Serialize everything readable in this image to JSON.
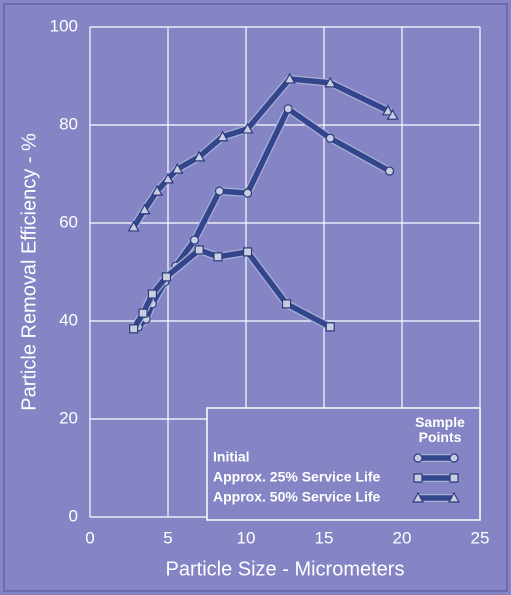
{
  "chart_data": {
    "type": "line",
    "xlabel": "Particle Size - Micrometers",
    "ylabel": "Particle Removal Efficiency - %",
    "legend_title": "Sample Points",
    "xlim": [
      0,
      25
    ],
    "xticks": [
      0,
      5,
      10,
      15,
      20,
      25
    ],
    "ylim": [
      0,
      100
    ],
    "yticks": [
      0,
      20,
      40,
      60,
      80,
      100
    ],
    "grid": true,
    "legend": "lower right",
    "series": [
      {
        "name": "Initial",
        "color": "#33458c",
        "marker": "circle",
        "x": [
          3.1,
          3.6,
          4.0,
          4.8,
          5.5,
          6.7,
          8.3,
          10.1,
          12.7,
          15.4,
          19.2
        ],
        "values": [
          38.8,
          40.4,
          43.5,
          48.0,
          51.2,
          56.5,
          66.5,
          66.1,
          83.3,
          77.3,
          70.6
        ]
      },
      {
        "name": "Approx. 25% Service Life",
        "color": "#33458c",
        "marker": "square",
        "x": [
          2.8,
          3.4,
          4.0,
          4.9,
          7.0,
          8.2,
          10.1,
          12.6,
          15.4
        ],
        "values": [
          38.4,
          41.6,
          45.5,
          49.0,
          54.5,
          53.1,
          54.1,
          43.5,
          38.8
        ]
      },
      {
        "name": "Approx. 50% Service Life",
        "color": "#33458c",
        "marker": "triangle",
        "x": [
          2.8,
          3.5,
          4.3,
          5.0,
          5.6,
          7.0,
          8.5,
          10.1,
          12.8,
          15.4,
          19.1,
          19.4
        ],
        "values": [
          59.2,
          62.7,
          66.5,
          69.0,
          71.0,
          73.5,
          77.6,
          79.2,
          89.4,
          88.6,
          82.9,
          82.0
        ]
      }
    ]
  }
}
